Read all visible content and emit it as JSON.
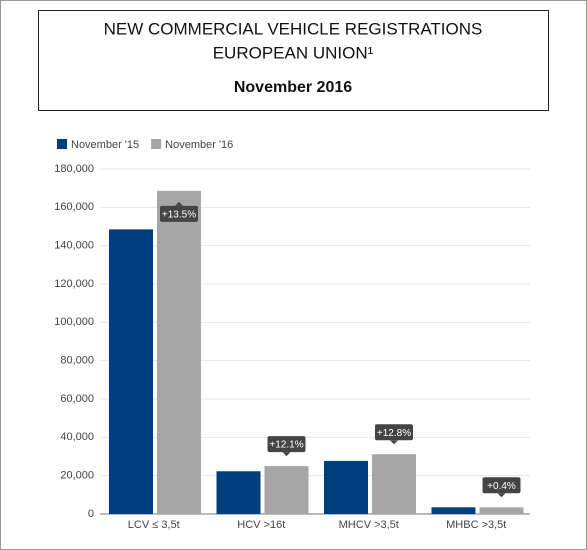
{
  "chart_data": {
    "type": "bar",
    "title": [
      "NEW COMMERCIAL VEHICLE REGISTRATIONS",
      "EUROPEAN UNION¹"
    ],
    "subtitle": "November 2016",
    "categories": [
      "LCV ≤ 3,5t",
      "HCV >16t",
      "MHCV >3,5t",
      "MHBC >3,5t"
    ],
    "series": [
      {
        "name": "November '15",
        "color": "#003f7f",
        "values": [
          148500,
          22300,
          27700,
          3500
        ]
      },
      {
        "name": "November '16",
        "color": "#a6a6a6",
        "values": [
          168600,
          25000,
          31200,
          3500
        ]
      }
    ],
    "annotations": [
      "+13.5%",
      "+12.1%",
      "+12.8%",
      "+0.4%"
    ],
    "ylim": [
      0,
      180000
    ],
    "yticks": [
      0,
      {
        "value": 20000,
        "label": "20,000"
      },
      {
        "value": 40000,
        "label": "40,000"
      },
      {
        "value": 60000,
        "label": "60,000"
      },
      {
        "value": 80000,
        "label": "80,000"
      },
      {
        "value": 100000,
        "label": "100,000"
      },
      {
        "value": 120000,
        "label": "120,000"
      },
      {
        "value": 140000,
        "label": "140,000"
      },
      {
        "value": 160000,
        "label": "160,000"
      },
      {
        "value": 180000,
        "label": "180,000"
      }
    ],
    "grid": true,
    "legend": "top-left"
  }
}
